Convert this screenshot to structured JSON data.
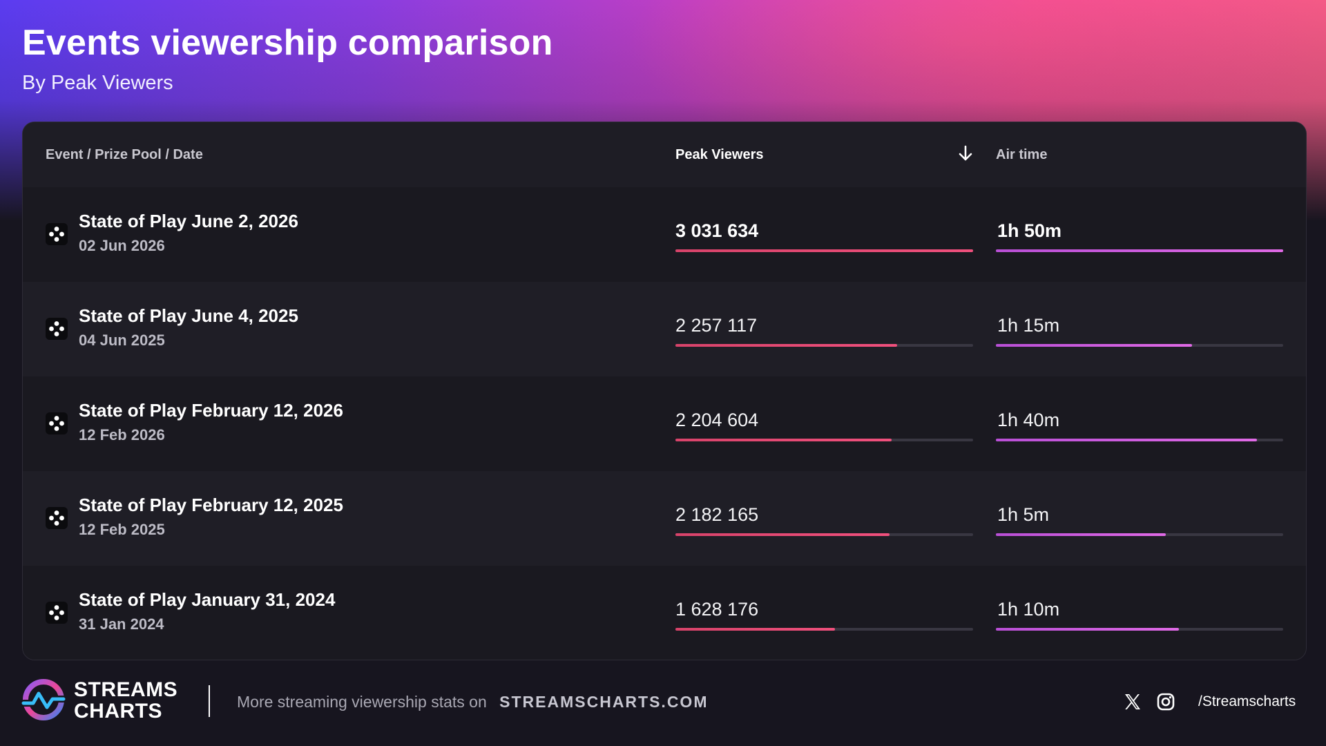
{
  "header": {
    "title": "Events viewership comparison",
    "subtitle": "By Peak Viewers"
  },
  "table": {
    "columns": {
      "event": "Event / Prize Pool / Date",
      "peak": "Peak Viewers",
      "air": "Air time"
    },
    "sort_icon": "arrow-down-icon",
    "row_icon": "playstation-icon",
    "rows": [
      {
        "name": "State of Play June 2, 2026",
        "date": "02 Jun 2026",
        "peak_viewers": "3 031 634",
        "peak_fraction": 1.0,
        "air_time": "1h 50m",
        "air_fraction": 1.0
      },
      {
        "name": "State of Play June 4, 2025",
        "date": "04 Jun 2025",
        "peak_viewers": "2 257 117",
        "peak_fraction": 0.745,
        "air_time": "1h 15m",
        "air_fraction": 0.682
      },
      {
        "name": "State of Play February 12, 2026",
        "date": "12 Feb 2026",
        "peak_viewers": "2 204 604",
        "peak_fraction": 0.727,
        "air_time": "1h 40m",
        "air_fraction": 0.909
      },
      {
        "name": "State of Play February 12, 2025",
        "date": "12 Feb 2025",
        "peak_viewers": "2 182 165",
        "peak_fraction": 0.72,
        "air_time": "1h 5m",
        "air_fraction": 0.591
      },
      {
        "name": "State of Play January 31, 2024",
        "date": "31 Jan 2024",
        "peak_viewers": "1 628 176",
        "peak_fraction": 0.537,
        "air_time": "1h 10m",
        "air_fraction": 0.636
      }
    ]
  },
  "footer": {
    "logo_icon": "streams-charts-logo-icon",
    "logo_line1": "STREAMS",
    "logo_line2": "CHARTS",
    "promo_text": "More streaming viewership stats on",
    "promo_link": "STREAMSCHARTS.COM",
    "social_icons": [
      "x-icon",
      "instagram-icon"
    ],
    "handle": "/Streamscharts"
  },
  "colors": {
    "peak_bar": "#f0507d",
    "air_bar": "#e06ae6",
    "panel_bg": "#1e1d25",
    "page_bg": "#17151f"
  }
}
